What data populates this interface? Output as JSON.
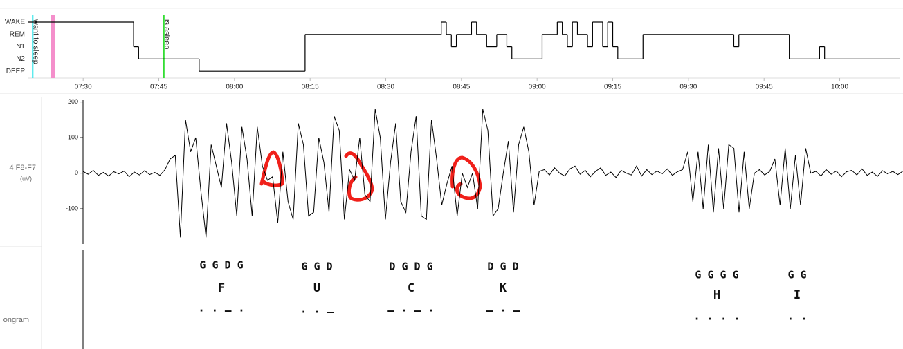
{
  "chart_data": [
    {
      "type": "step",
      "y_categories": [
        "WAKE",
        "REM",
        "N1",
        "N2",
        "DEEP"
      ],
      "x": [
        "07:19",
        "07:40",
        "07:41",
        "07:53",
        "08:14",
        "08:41",
        "08:42",
        "08:43",
        "08:44",
        "08:47",
        "08:48",
        "08:50",
        "08:52",
        "08:54",
        "08:55",
        "09:01",
        "09:04",
        "09:05",
        "09:06",
        "09:07",
        "09:08",
        "09:10",
        "09:11",
        "09:13",
        "09:14",
        "09:15",
        "09:16",
        "09:21",
        "09:39",
        "09:40",
        "09:50",
        "09:56",
        "09:57",
        "10:12"
      ],
      "values": [
        "WAKE",
        "N1",
        "N2",
        "DEEP",
        "REM",
        "WAKE",
        "REM",
        "N1",
        "REM",
        "WAKE",
        "REM",
        "N1",
        "REM",
        "N1",
        "N2",
        "REM",
        "WAKE",
        "REM",
        "N1",
        "WAKE",
        "REM",
        "N1",
        "WAKE",
        "N1",
        "WAKE",
        "N1",
        "N2",
        "REM",
        "N1",
        "REM",
        "N2",
        "N1",
        "N2",
        "N2"
      ],
      "color": "#000000",
      "xlim": [
        "07:19",
        "10:12"
      ],
      "xticks": [
        "07:30",
        "07:45",
        "08:00",
        "08:15",
        "08:30",
        "08:45",
        "09:00",
        "09:15",
        "09:30",
        "09:45",
        "10:00"
      ],
      "markers": [
        {
          "label": "want to sleep",
          "x": "07:20",
          "color": "#1fe3e8"
        },
        {
          "x": "07:24",
          "color": "#f48fcb"
        },
        {
          "label": "is asleep",
          "x": "07:46",
          "color": "#33dd33"
        }
      ]
    },
    {
      "type": "line",
      "ylabel": "4 F8-F7",
      "yunit": "(uV)",
      "color": "#000000",
      "ylim": [
        -195,
        205
      ],
      "yticks": [
        -100,
        0,
        100,
        200
      ],
      "values": [
        5,
        -3,
        8,
        -6,
        2,
        -8,
        4,
        -2,
        6,
        -10,
        3,
        -5,
        7,
        -4,
        2,
        -6,
        10,
        40,
        50,
        -180,
        150,
        60,
        100,
        -50,
        -180,
        80,
        20,
        -40,
        140,
        30,
        -120,
        130,
        40,
        -120,
        130,
        20,
        -20,
        -10,
        -140,
        60,
        -80,
        -130,
        140,
        80,
        -120,
        -110,
        100,
        30,
        -110,
        160,
        120,
        -130,
        10,
        -20,
        100,
        -60,
        -80,
        180,
        100,
        -130,
        30,
        140,
        -80,
        -110,
        60,
        160,
        -120,
        -130,
        150,
        40,
        -90,
        -30,
        20,
        -120,
        0,
        -40,
        0,
        -100,
        180,
        120,
        -120,
        -100,
        0,
        90,
        -110,
        80,
        130,
        60,
        -90,
        5,
        10,
        -5,
        15,
        0,
        -8,
        12,
        20,
        -3,
        8,
        -10,
        5,
        15,
        -6,
        3,
        -12,
        8,
        0,
        -5,
        20,
        -8,
        10,
        -4,
        6,
        -2,
        12,
        -6,
        4,
        10,
        60,
        -80,
        60,
        -100,
        80,
        -110,
        70,
        -100,
        80,
        70,
        -110,
        60,
        -100,
        0,
        10,
        -5,
        5,
        40,
        -90,
        70,
        -100,
        50,
        -90,
        70,
        0,
        5,
        -8,
        10,
        -3,
        6,
        -10,
        4,
        8,
        -5,
        12,
        -6,
        3,
        -9,
        7,
        -2,
        5,
        -4,
        6
      ]
    }
  ],
  "spectrogram": {
    "label": "ongram",
    "notes": [
      {
        "code": "G G D G",
        "letter": "F",
        "morse": "· · – ·"
      },
      {
        "code": "G G D",
        "letter": "U",
        "morse": "· · –"
      },
      {
        "code": "D G D G",
        "letter": "C",
        "morse": "– · – ·"
      },
      {
        "code": "D G D",
        "letter": "K",
        "morse": "– · –"
      },
      {
        "code": "G G G G",
        "letter": "H",
        "morse": "· · · ·"
      },
      {
        "code": "G G",
        "letter": "I",
        "morse": "· ·"
      }
    ]
  }
}
